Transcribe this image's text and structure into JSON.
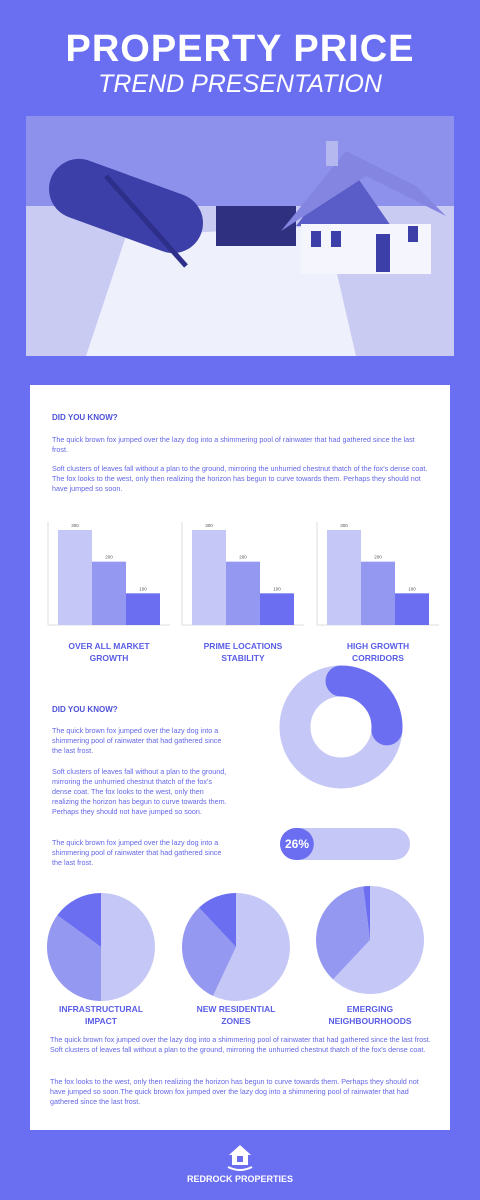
{
  "header": {
    "title": "PROPERTY PRICE",
    "subtitle": "TREND PRESENTATION"
  },
  "intro": {
    "heading": "DID YOU KNOW?",
    "paragraphs": [
      "The quick brown fox jumped over the lazy dog into a shimmering pool of rainwater that had gathered since the last frost.",
      "Soft clusters of leaves fall without a plan to the ground, mirroring the unhurried chestnut thatch of the fox's dense coat. The fox looks to the west, only then realizing the horizon has begun to curve towards them. Perhaps they should not have jumped so soon."
    ]
  },
  "middle": {
    "heading": "DID YOU KNOW?",
    "paragraphs": [
      "The quick brown fox jumped over the lazy dog into a shimmering pool of rainwater that had gathered since the last frost.",
      "Soft clusters of leaves fall without a plan to the ground, mirroring the unhurried chestnut thatch of the fox's dense coat. The fox looks to the west, only then realizing the horizon has begun to curve towards them. Perhaps they should not have jumped so soon.",
      "The quick brown fox jumped over the lazy dog into a shimmering pool of rainwater that had gathered since the last frost."
    ]
  },
  "closing": {
    "paragraphs": [
      "The quick brown fox jumped over the lazy dog into a shimmering pool of rainwater that had gathered since the last frost. Soft clusters of leaves fall without a plan to the ground, mirroring the unhurried chestnut thatch of the fox's dense coat.",
      "The fox looks to the west, only then realizing the horizon has begun to curve towards them. Perhaps they should not have jumped so soon.The quick brown fox jumped over the lazy dog into a shimmering pool of rainwater that had gathered since the last frost."
    ]
  },
  "chart_data": [
    {
      "type": "bar",
      "title": "OVER ALL MARKET GROWTH",
      "categories": [
        null,
        null,
        null
      ],
      "values": [
        300,
        200,
        100
      ],
      "colors": [
        "#c5c7f6",
        "#9598f1",
        "#6b6ef0"
      ],
      "ylim": [
        0,
        300
      ]
    },
    {
      "type": "bar",
      "title": "PRIME LOCATIONS STABILITY",
      "categories": [
        null,
        null,
        null
      ],
      "values": [
        300,
        200,
        100
      ],
      "colors": [
        "#c5c7f6",
        "#9598f1",
        "#6b6ef0"
      ],
      "ylim": [
        0,
        300
      ]
    },
    {
      "type": "bar",
      "title": "HIGH GROWTH CORRIDORS",
      "categories": [
        null,
        null,
        null
      ],
      "values": [
        300,
        200,
        100
      ],
      "colors": [
        "#c5c7f6",
        "#9598f1",
        "#6b6ef0"
      ],
      "ylim": [
        0,
        300
      ]
    },
    {
      "type": "donut",
      "values": [
        26
      ],
      "value_labels": [
        "26%"
      ],
      "colors": [
        "#6b6ef0"
      ],
      "track_color": "#c5c7f6"
    },
    {
      "type": "pie",
      "title": "INFRASTRUCTURAL IMPACT",
      "categories": [
        null,
        null,
        null
      ],
      "values": [
        50,
        35,
        15
      ],
      "colors": [
        "#c5c7f6",
        "#9598f1",
        "#6b6ef0"
      ]
    },
    {
      "type": "pie",
      "title": "NEW RESIDENTIAL ZONES",
      "categories": [
        null,
        null,
        null
      ],
      "values": [
        57,
        31,
        12
      ],
      "colors": [
        "#c5c7f6",
        "#9598f1",
        "#6b6ef0"
      ]
    },
    {
      "type": "pie",
      "title": "EMERGING NEIGHBOURHOODS",
      "categories": [
        null,
        null,
        null
      ],
      "values": [
        62,
        36,
        2
      ],
      "colors": [
        "#c5c7f6",
        "#9598f1",
        "#6b6ef0"
      ]
    }
  ],
  "footer": {
    "brand": "REDROCK PROPERTIES"
  }
}
